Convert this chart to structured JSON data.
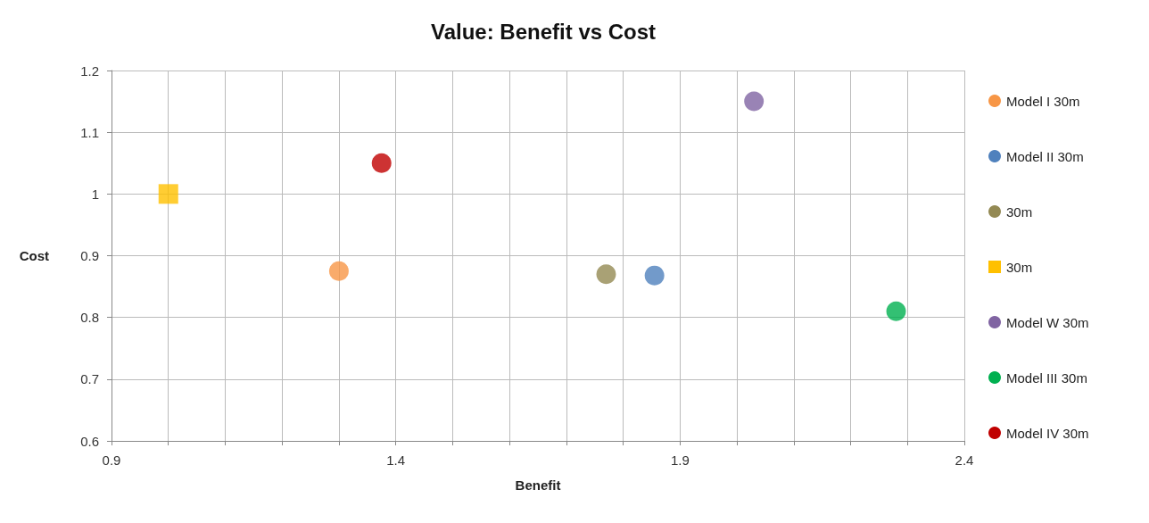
{
  "chart_data": {
    "type": "scatter",
    "title": "Value: Benefit vs Cost",
    "xlabel": "Benefit",
    "ylabel": "Cost",
    "xlim": [
      0.9,
      2.4
    ],
    "ylim": [
      0.6,
      1.2
    ],
    "xticks": [
      0.9,
      {
        "value": 1.0,
        "label": null
      },
      {
        "value": 1.1,
        "label": null
      },
      {
        "value": 1.2,
        "label": null
      },
      {
        "value": 1.3,
        "label": null
      },
      1.4,
      {
        "value": 1.5,
        "label": null
      },
      {
        "value": 1.6,
        "label": null
      },
      {
        "value": 1.7,
        "label": null
      },
      {
        "value": 1.8,
        "label": null
      },
      1.9,
      {
        "value": 2.0,
        "label": null
      },
      {
        "value": 2.1,
        "label": null
      },
      {
        "value": 2.2,
        "label": null
      },
      {
        "value": 2.3,
        "label": null
      },
      2.4
    ],
    "yticks": [
      0.6,
      0.7,
      0.8,
      0.9,
      1,
      1.1,
      1.2
    ],
    "grid": true,
    "legend": "right",
    "series": [
      {
        "name": "Model I 30m",
        "color": "#f79646",
        "marker": "circle",
        "x": [
          1.3
        ],
        "values": [
          0.875
        ]
      },
      {
        "name": "Model II 30m",
        "color": "#4f81bd",
        "marker": "circle",
        "x": [
          1.855
        ],
        "values": [
          0.868
        ]
      },
      {
        "name": "30m",
        "color": "#938953",
        "marker": "circle",
        "x": [
          1.77
        ],
        "values": [
          0.87
        ]
      },
      {
        "name": "30m",
        "color": "#ffc000",
        "marker": "square",
        "x": [
          1.0
        ],
        "values": [
          1.0
        ]
      },
      {
        "name": "Model W 30m",
        "color": "#8064a2",
        "marker": "circle",
        "x": [
          2.03
        ],
        "values": [
          1.15
        ]
      },
      {
        "name": "Model III 30m",
        "color": "#00b050",
        "marker": "circle",
        "x": [
          2.28
        ],
        "values": [
          0.81
        ]
      },
      {
        "name": "Model IV 30m",
        "color": "#c00000",
        "marker": "circle",
        "x": [
          1.375
        ],
        "values": [
          1.05
        ]
      }
    ]
  }
}
